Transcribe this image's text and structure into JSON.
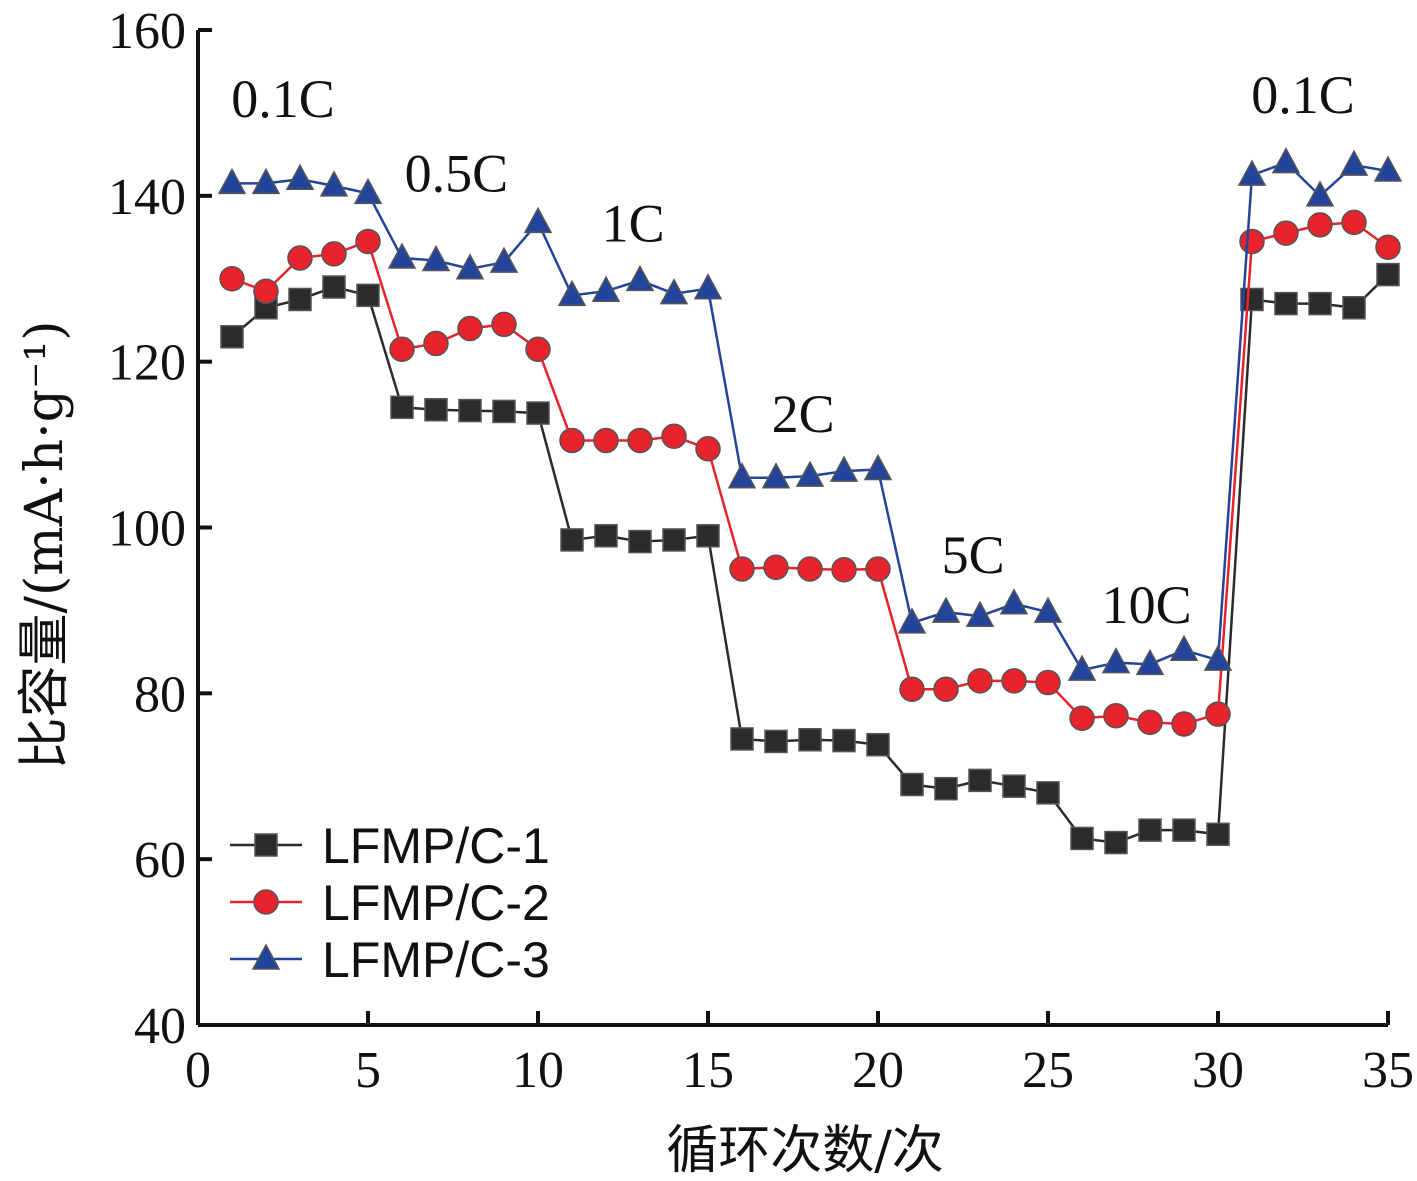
{
  "chart_data": {
    "type": "line",
    "xlabel": "循环次数/次",
    "ylabel": "比容量/(mA·h·g⁻¹)",
    "xlim": [
      0,
      35
    ],
    "ylim": [
      40,
      160
    ],
    "xticks": [
      0,
      5,
      10,
      15,
      20,
      25,
      30,
      35
    ],
    "yticks": [
      40,
      60,
      80,
      100,
      120,
      140,
      160
    ],
    "grid": false,
    "legend_position": "bottom-left",
    "x": [
      1,
      2,
      3,
      4,
      5,
      6,
      7,
      8,
      9,
      10,
      11,
      12,
      13,
      14,
      15,
      16,
      17,
      18,
      19,
      20,
      21,
      22,
      23,
      24,
      25,
      26,
      27,
      28,
      29,
      30,
      31,
      32,
      33,
      34,
      35
    ],
    "series": [
      {
        "name": "LFMP/C-1",
        "color": "#2b2b2b",
        "marker": "square",
        "values": [
          123,
          126.5,
          127.5,
          129,
          128,
          114.5,
          114.2,
          114.1,
          114,
          113.8,
          98.5,
          99,
          98.3,
          98.5,
          99,
          74.5,
          74.2,
          74.4,
          74.3,
          73.8,
          69,
          68.5,
          69.5,
          68.8,
          68,
          62.5,
          62,
          63.5,
          63.5,
          63,
          127.5,
          127,
          127,
          126.5,
          130.5
        ]
      },
      {
        "name": "LFMP/C-2",
        "color": "#e8232b",
        "marker": "circle",
        "values": [
          130,
          128.5,
          132.5,
          133,
          134.5,
          121.5,
          122.2,
          124,
          124.5,
          121.5,
          110.5,
          110.5,
          110.5,
          111,
          109.5,
          95,
          95.2,
          95,
          94.9,
          95,
          80.5,
          80.5,
          81.5,
          81.5,
          81.3,
          77,
          77.3,
          76.5,
          76.3,
          77.5,
          134.5,
          135.5,
          136.5,
          136.8,
          133.8
        ]
      },
      {
        "name": "LFMP/C-3",
        "color": "#22449a",
        "marker": "triangle",
        "values": [
          141.5,
          141.5,
          142,
          141.2,
          140.3,
          132.5,
          132.2,
          131.2,
          132,
          136.8,
          128,
          128.5,
          129.8,
          128.2,
          128.8,
          106,
          106,
          106.2,
          106.8,
          107,
          88.5,
          89.8,
          89.3,
          90.8,
          89.8,
          82.8,
          83.7,
          83.5,
          85.2,
          84,
          142.5,
          144,
          140,
          143.7,
          143
        ]
      }
    ],
    "annotations": [
      {
        "text": "0.1C",
        "x": 2.5,
        "y": 149.5
      },
      {
        "text": "0.5C",
        "x": 7.6,
        "y": 140.5
      },
      {
        "text": "1C",
        "x": 12.8,
        "y": 134.5
      },
      {
        "text": "2C",
        "x": 17.8,
        "y": 111.5
      },
      {
        "text": "5C",
        "x": 22.8,
        "y": 94.5
      },
      {
        "text": "10C",
        "x": 27.9,
        "y": 88.5
      },
      {
        "text": "0.1C",
        "x": 32.5,
        "y": 150
      }
    ]
  }
}
